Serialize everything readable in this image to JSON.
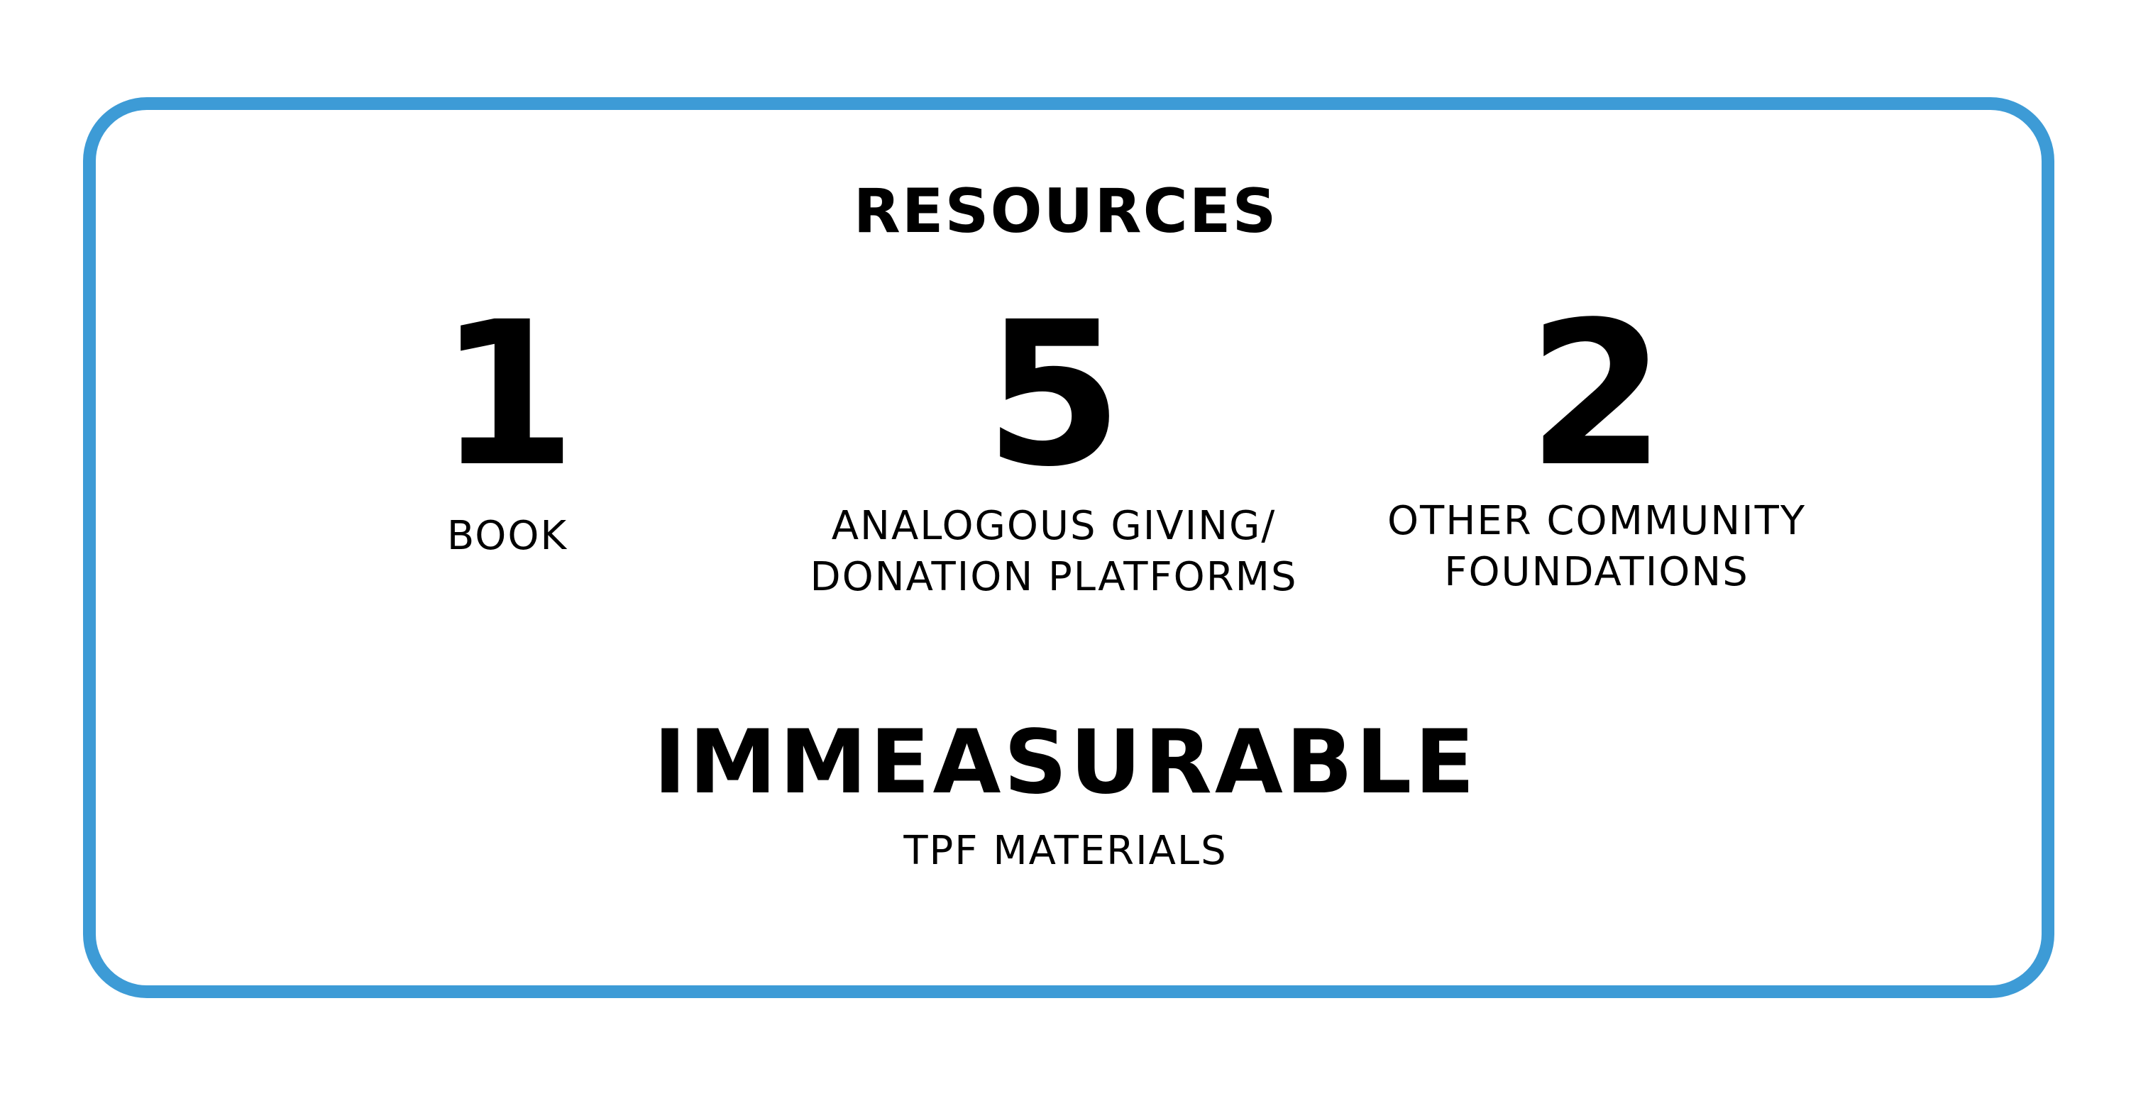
{
  "card": {
    "border_color": "#3d9bd6",
    "heading": "RESOURCES",
    "stats": [
      {
        "number": "1",
        "label_lines": [
          "BOOK"
        ]
      },
      {
        "number": "5",
        "label_lines": [
          "ANALOGOUS GIVING/",
          "DONATION PLATFORMS"
        ]
      },
      {
        "number": "2",
        "label_lines": [
          "OTHER COMMUNITY",
          "FOUNDATIONS"
        ]
      }
    ],
    "highlight": {
      "value": "IMMEASURABLE",
      "label": "TPF MATERIALS"
    }
  }
}
